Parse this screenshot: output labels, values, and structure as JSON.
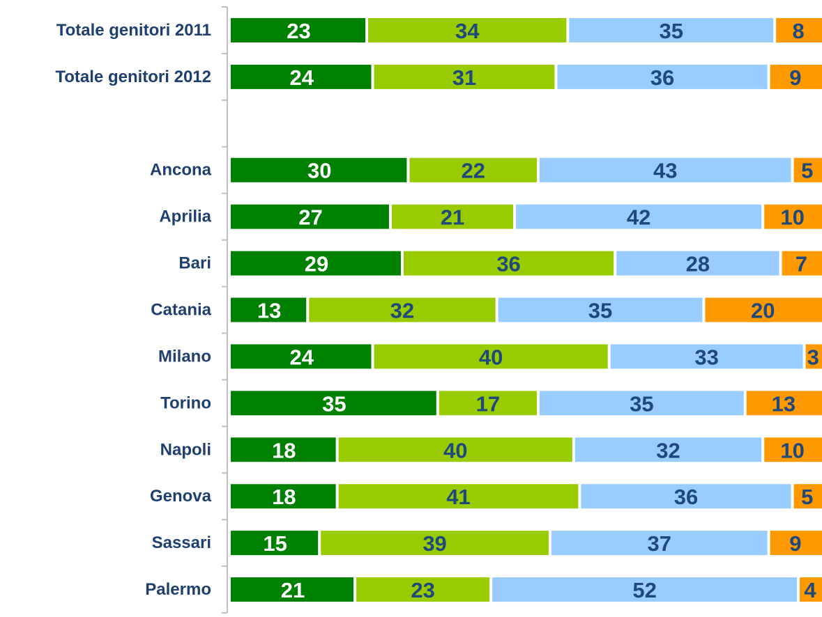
{
  "chart_data": {
    "type": "stacked-bar-horizontal",
    "categories": [
      "Totale genitori 2011",
      "Totale genitori 2012",
      null,
      "Ancona",
      "Aprilia",
      "Bari",
      "Catania",
      "Milano",
      "Torino",
      "Napoli",
      "Genova",
      "Sassari",
      "Palermo"
    ],
    "series": [
      {
        "color": "#008000",
        "label_color": "#ffffff",
        "values": [
          23,
          24,
          null,
          30,
          27,
          29,
          13,
          24,
          35,
          18,
          18,
          15,
          21
        ]
      },
      {
        "color": "#99cc00",
        "label_color": "#1f497d",
        "values": [
          34,
          31,
          null,
          22,
          21,
          36,
          32,
          40,
          17,
          40,
          41,
          39,
          23
        ]
      },
      {
        "color": "#99ccff",
        "label_color": "#1f497d",
        "values": [
          35,
          36,
          null,
          43,
          42,
          28,
          35,
          33,
          35,
          32,
          36,
          37,
          52
        ]
      },
      {
        "color": "#ff9900",
        "label_color": "#1f497d",
        "values": [
          8,
          9,
          null,
          5,
          10,
          7,
          20,
          3,
          13,
          10,
          5,
          9,
          4
        ]
      }
    ],
    "xlim": [
      0,
      100
    ]
  }
}
